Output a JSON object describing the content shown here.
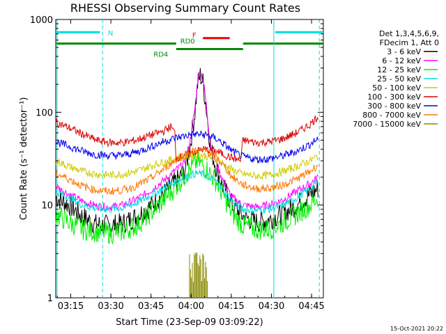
{
  "chart_data": {
    "type": "line",
    "title": "RHESSI Observing Summary Count Rates",
    "xlabel": "Start Time (23-Sep-09 03:09:22)",
    "ylabel": "Count Rate (s⁻¹ detector⁻¹)",
    "yscale": "log",
    "ylim": [
      1,
      1000
    ],
    "xlim_min": [
      0,
      100
    ],
    "x_ticks": [
      {
        "min": 5.6,
        "label": "03:15"
      },
      {
        "min": 20.6,
        "label": "03:30"
      },
      {
        "min": 35.6,
        "label": "03:45"
      },
      {
        "min": 50.6,
        "label": "04:00"
      },
      {
        "min": 65.6,
        "label": "04:15"
      },
      {
        "min": 80.6,
        "label": "04:30"
      },
      {
        "min": 95.6,
        "label": "04:45"
      }
    ],
    "y_ticks": [
      {
        "value": 1,
        "label": "1"
      },
      {
        "value": 10,
        "label": "10"
      },
      {
        "value": 100,
        "label": "100"
      },
      {
        "value": 1000,
        "label": "1000"
      }
    ],
    "legend_header": [
      "Det 1,3,4,5,6,9,",
      "FDecim 1, Att 0"
    ],
    "legend_position": "right",
    "timestamp": "15-Oct-2021 20:22",
    "series": [
      {
        "name": "3 - 6 keV",
        "color": "#000000",
        "points": [
          [
            0,
            12
          ],
          [
            5,
            10
          ],
          [
            10,
            7.5
          ],
          [
            15,
            6.2
          ],
          [
            20,
            6
          ],
          [
            25,
            6.3
          ],
          [
            30,
            7.5
          ],
          [
            35,
            9.5
          ],
          [
            40,
            13
          ],
          [
            45,
            18
          ],
          [
            48,
            22
          ],
          [
            50,
            40
          ],
          [
            52,
            100
          ],
          [
            53,
            200
          ],
          [
            54,
            250
          ],
          [
            55,
            210
          ],
          [
            56,
            130
          ],
          [
            57,
            70
          ],
          [
            58,
            40
          ],
          [
            60,
            25
          ],
          [
            62,
            17
          ],
          [
            64,
            13
          ],
          [
            66,
            10
          ],
          [
            70,
            7.5
          ],
          [
            75,
            6.5
          ],
          [
            80,
            7
          ],
          [
            85,
            8
          ],
          [
            90,
            10
          ],
          [
            95,
            13
          ],
          [
            98,
            15
          ]
        ]
      },
      {
        "name": "6 - 12 keV",
        "color": "#ff00ff",
        "points": [
          [
            0,
            16
          ],
          [
            5,
            13
          ],
          [
            10,
            11
          ],
          [
            15,
            9.8
          ],
          [
            20,
            9.5
          ],
          [
            25,
            10
          ],
          [
            30,
            11.5
          ],
          [
            35,
            14
          ],
          [
            40,
            18
          ],
          [
            45,
            24
          ],
          [
            48,
            28
          ],
          [
            50,
            45
          ],
          [
            52,
            110
          ],
          [
            53,
            220
          ],
          [
            54,
            280
          ],
          [
            55,
            230
          ],
          [
            56,
            140
          ],
          [
            57,
            75
          ],
          [
            58,
            42
          ],
          [
            60,
            28
          ],
          [
            62,
            20
          ],
          [
            64,
            15
          ],
          [
            66,
            12
          ],
          [
            70,
            10
          ],
          [
            75,
            9.5
          ],
          [
            80,
            10
          ],
          [
            85,
            11.5
          ],
          [
            90,
            14
          ],
          [
            95,
            17
          ],
          [
            98,
            20
          ]
        ]
      },
      {
        "name": "12 - 25 keV",
        "color": "#00ee00",
        "points": [
          [
            0,
            8
          ],
          [
            5,
            6.5
          ],
          [
            10,
            5.5
          ],
          [
            15,
            5.2
          ],
          [
            20,
            5
          ],
          [
            25,
            5.2
          ],
          [
            30,
            6
          ],
          [
            35,
            8
          ],
          [
            40,
            11
          ],
          [
            45,
            16
          ],
          [
            50,
            24
          ],
          [
            53,
            30
          ],
          [
            56,
            25
          ],
          [
            60,
            18
          ],
          [
            63,
            12
          ],
          [
            66,
            8
          ],
          [
            70,
            6
          ],
          [
            75,
            5.5
          ],
          [
            80,
            5.5
          ],
          [
            85,
            6.5
          ],
          [
            90,
            8
          ],
          [
            95,
            10
          ],
          [
            98,
            12
          ]
        ]
      },
      {
        "name": "25 - 50 keV",
        "color": "#00dddd",
        "points": [
          [
            0,
            14
          ],
          [
            5,
            12
          ],
          [
            10,
            10
          ],
          [
            15,
            9.2
          ],
          [
            20,
            9
          ],
          [
            25,
            9.3
          ],
          [
            30,
            10.5
          ],
          [
            35,
            12.5
          ],
          [
            40,
            15
          ],
          [
            45,
            18
          ],
          [
            50,
            21
          ],
          [
            53,
            22
          ],
          [
            56,
            21
          ],
          [
            60,
            18
          ],
          [
            63,
            14
          ],
          [
            66,
            11
          ],
          [
            70,
            9
          ],
          [
            75,
            8.8
          ],
          [
            80,
            9
          ],
          [
            85,
            10
          ],
          [
            90,
            12
          ],
          [
            95,
            15
          ],
          [
            98,
            18
          ]
        ]
      },
      {
        "name": "50 - 100 keV",
        "color": "#cccc00",
        "points": [
          [
            0,
            30
          ],
          [
            5,
            26
          ],
          [
            10,
            23
          ],
          [
            15,
            21.5
          ],
          [
            20,
            21
          ],
          [
            25,
            21.5
          ],
          [
            30,
            23
          ],
          [
            35,
            26
          ],
          [
            40,
            29
          ],
          [
            45,
            32
          ],
          [
            50,
            34
          ],
          [
            53,
            35
          ],
          [
            56,
            34
          ],
          [
            60,
            31
          ],
          [
            63,
            27
          ],
          [
            66,
            24
          ],
          [
            70,
            21.5
          ],
          [
            75,
            20.5
          ],
          [
            80,
            21
          ],
          [
            85,
            23
          ],
          [
            90,
            26
          ],
          [
            95,
            30
          ],
          [
            98,
            34
          ]
        ]
      },
      {
        "name": "100 - 300 keV",
        "color": "#dd0000",
        "points": [
          [
            0,
            78
          ],
          [
            5,
            68
          ],
          [
            10,
            58
          ],
          [
            15,
            50
          ],
          [
            20,
            47
          ],
          [
            25,
            47
          ],
          [
            30,
            50
          ],
          [
            35,
            56
          ],
          [
            40,
            62
          ],
          [
            43,
            70
          ],
          [
            44.5,
            60
          ],
          [
            45,
            32
          ],
          [
            50,
            36
          ],
          [
            55,
            40
          ],
          [
            60,
            38
          ],
          [
            65,
            33
          ],
          [
            69,
            30
          ],
          [
            70,
            50
          ],
          [
            75,
            47
          ],
          [
            80,
            48
          ],
          [
            85,
            52
          ],
          [
            90,
            60
          ],
          [
            95,
            74
          ],
          [
            98,
            90
          ]
        ]
      },
      {
        "name": "300 - 800 keV",
        "color": "#0000ee",
        "points": [
          [
            0,
            48
          ],
          [
            5,
            43
          ],
          [
            10,
            38
          ],
          [
            15,
            35
          ],
          [
            20,
            34
          ],
          [
            25,
            34.5
          ],
          [
            30,
            37
          ],
          [
            35,
            42
          ],
          [
            40,
            48
          ],
          [
            45,
            53
          ],
          [
            50,
            57
          ],
          [
            53,
            58
          ],
          [
            56,
            57
          ],
          [
            60,
            52
          ],
          [
            63,
            45
          ],
          [
            66,
            38
          ],
          [
            70,
            33
          ],
          [
            75,
            31
          ],
          [
            80,
            31.5
          ],
          [
            85,
            34
          ],
          [
            90,
            38
          ],
          [
            95,
            45
          ],
          [
            98,
            52
          ]
        ]
      },
      {
        "name": "800 - 7000 keV",
        "color": "#ff7700",
        "points": [
          [
            0,
            22
          ],
          [
            5,
            19
          ],
          [
            10,
            16
          ],
          [
            15,
            14.5
          ],
          [
            20,
            14
          ],
          [
            25,
            14.5
          ],
          [
            30,
            16
          ],
          [
            35,
            19
          ],
          [
            40,
            24
          ],
          [
            45,
            31
          ],
          [
            50,
            37
          ],
          [
            53,
            39
          ],
          [
            56,
            38
          ],
          [
            60,
            33
          ],
          [
            63,
            26
          ],
          [
            66,
            20
          ],
          [
            70,
            16.5
          ],
          [
            75,
            15
          ],
          [
            80,
            15.2
          ],
          [
            85,
            16.5
          ],
          [
            90,
            19
          ],
          [
            95,
            23
          ],
          [
            98,
            27
          ]
        ]
      },
      {
        "name": "7000 - 15000 keV",
        "color": "#888800",
        "points": [
          [
            50,
            3
          ],
          [
            51,
            3
          ],
          [
            52,
            3
          ],
          [
            53,
            3
          ],
          [
            54,
            3
          ],
          [
            55,
            3
          ],
          [
            56,
            3
          ],
          [
            57,
            3
          ]
        ]
      }
    ],
    "vertical_lines": {
      "color": "#00dddd",
      "solid_min": [
        0.5,
        81.5
      ],
      "dashed_min": [
        17.5,
        98.5
      ]
    },
    "status_bars": [
      {
        "label": "N",
        "color": "#00dddd",
        "segments": [
          [
            0,
            16.5
          ],
          [
            82,
            100
          ]
        ],
        "y_value": 730
      },
      {
        "label": "F",
        "color": "#ee0000",
        "segments": [
          [
            55,
            65
          ]
        ],
        "y_value": 630
      },
      {
        "label": "RD0",
        "color": "#008800",
        "segments": [
          [
            0,
            45
          ],
          [
            70,
            100
          ]
        ],
        "y_value": 550
      },
      {
        "label": "RD4",
        "color": "#008800",
        "segments": [
          [
            45,
            70
          ]
        ],
        "y_value": 480
      }
    ]
  }
}
